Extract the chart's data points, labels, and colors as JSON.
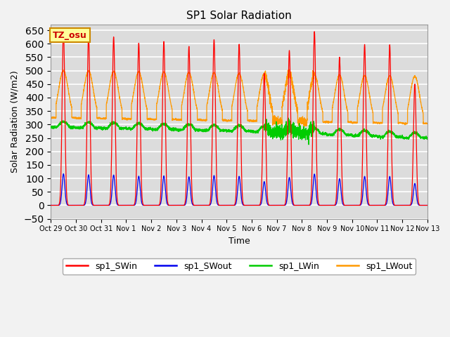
{
  "title": "SP1 Solar Radiation",
  "ylabel": "Solar Radiation (W/m2)",
  "xlabel": "Time",
  "ylim": [
    -50,
    670
  ],
  "yticks": [
    -50,
    0,
    50,
    100,
    150,
    200,
    250,
    300,
    350,
    400,
    450,
    500,
    550,
    600,
    650
  ],
  "legend_entries": [
    "sp1_SWin",
    "sp1_SWout",
    "sp1_LWin",
    "sp1_LWout"
  ],
  "colors": {
    "SWin": "#FF0000",
    "SWout": "#0000EE",
    "LWin": "#00CC00",
    "LWout": "#FF9900"
  },
  "tz_label": "TZ_osu",
  "x_tick_labels": [
    "Oct 29",
    "Oct 30",
    "Oct 31",
    "Nov 1",
    "Nov 2",
    "Nov 3",
    "Nov 4",
    "Nov 5",
    "Nov 6",
    "Nov 7",
    "Nov 8",
    "Nov 9",
    "Nov 10",
    "Nov 11",
    "Nov 12",
    "Nov 13"
  ],
  "SWin_peaks": [
    650,
    630,
    625,
    602,
    608,
    590,
    615,
    598,
    490,
    575,
    645,
    550,
    597,
    596,
    450
  ],
  "figsize": [
    6.4,
    4.8
  ],
  "dpi": 100,
  "total_days": 15
}
